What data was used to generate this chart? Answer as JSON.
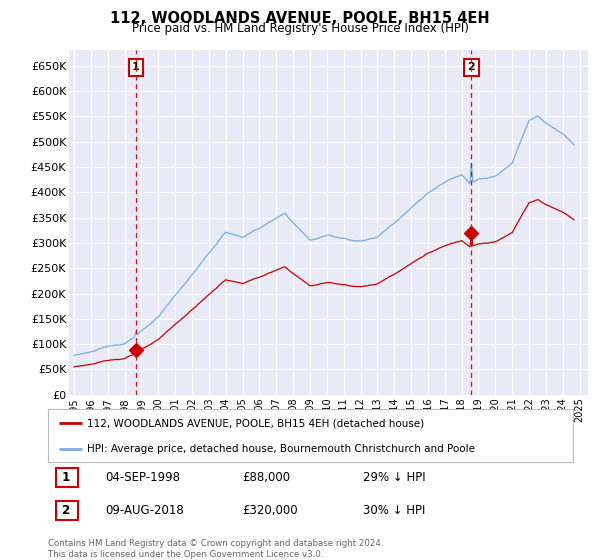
{
  "title": "112, WOODLANDS AVENUE, POOLE, BH15 4EH",
  "subtitle": "Price paid vs. HM Land Registry's House Price Index (HPI)",
  "legend_line1": "112, WOODLANDS AVENUE, POOLE, BH15 4EH (detached house)",
  "legend_line2": "HPI: Average price, detached house, Bournemouth Christchurch and Poole",
  "annotation1_label": "1",
  "annotation1_date": "04-SEP-1998",
  "annotation1_price": "£88,000",
  "annotation1_hpi": "29% ↓ HPI",
  "annotation2_label": "2",
  "annotation2_date": "09-AUG-2018",
  "annotation2_price": "£320,000",
  "annotation2_hpi": "30% ↓ HPI",
  "footnote": "Contains HM Land Registry data © Crown copyright and database right 2024.\nThis data is licensed under the Open Government Licence v3.0.",
  "price_color": "#cc0000",
  "hpi_color": "#7aade0",
  "bg_color": "#ffffff",
  "plot_bg_color": "#e8eaf6",
  "grid_color": "#ffffff",
  "ylim": [
    0,
    680000
  ],
  "yticks": [
    0,
    50000,
    100000,
    150000,
    200000,
    250000,
    300000,
    350000,
    400000,
    450000,
    500000,
    550000,
    600000,
    650000
  ],
  "sale1_x": 1998.67,
  "sale1_y": 88000,
  "sale2_x": 2018.58,
  "sale2_y": 320000,
  "vline1_x": 1998.67,
  "vline2_x": 2018.58,
  "xlim_left": 1995.0,
  "xlim_right": 2025.5
}
